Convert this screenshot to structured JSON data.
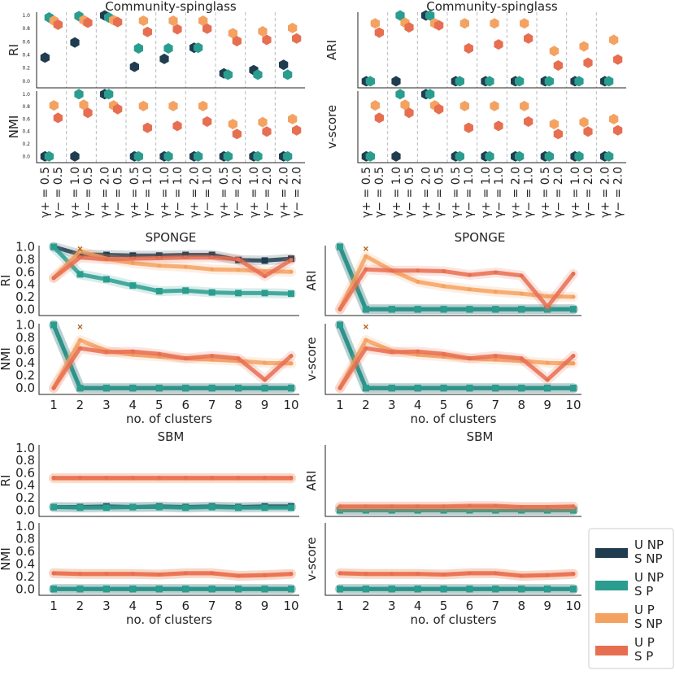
{
  "colors": {
    "UNP_SNP": "#1f3d4f",
    "UNP_SP": "#2a9d8f",
    "UP_SNP": "#f4a261",
    "UP_SP": "#e76f51",
    "axis": "#222222",
    "grid": "#bbbbbb",
    "marker_x": "#b5651d"
  },
  "legend": [
    {
      "key": "UNP_SNP",
      "line1": "U  NP",
      "line2": "S  NP"
    },
    {
      "key": "UNP_SP",
      "line1": "U  NP",
      "line2": "S   P"
    },
    {
      "key": "UP_SNP",
      "line1": "U   P",
      "line2": "S  NP"
    },
    {
      "key": "UP_SP",
      "line1": "U   P",
      "line2": "S   P"
    }
  ],
  "chart_data": [
    {
      "type": "scatter",
      "title": "Community-spinglass",
      "metrics": [
        "RI",
        "NMI",
        "ARI",
        "v-score"
      ],
      "categories": [
        "γ+ = 0.5\nγ− = 0.5",
        "γ+ = 1.0\nγ− = 0.5",
        "γ+ = 2.0\nγ− = 0.5",
        "γ+ = 0.5\nγ− = 1.0",
        "γ+ = 1.0\nγ− = 1.0",
        "γ+ = 2.0\nγ− = 1.0",
        "γ+ = 0.5\nγ− = 2.0",
        "γ+ = 1.0\nγ− = 2.0",
        "γ+ = 2.0\nγ− = 2.0"
      ],
      "cat_labels": [
        "γ+ = 0.5",
        "γ− = 0.5",
        "γ+ = 1.0",
        "γ− = 0.5",
        "γ+ = 2.0",
        "γ− = 0.5",
        "γ+ = 0.5",
        "γ− = 1.0",
        "γ+ = 1.0",
        "γ− = 1.0",
        "γ+ = 2.0",
        "γ− = 1.0",
        "γ+ = 0.5",
        "γ− = 2.0",
        "γ+ = 1.0",
        "γ− = 2.0",
        "γ+ = 2.0",
        "γ− = 2.0"
      ],
      "yticks": [
        "0.0",
        "0.2",
        "0.4",
        "0.6",
        "0.8",
        "1.0"
      ],
      "ylim": [
        -0.1,
        1.05
      ],
      "series": {
        "RI": {
          "UNP_SNP": [
            0.36,
            0.59,
            1.0,
            0.22,
            0.34,
            0.51,
            0.12,
            0.17,
            0.25
          ],
          "UNP_SP": [
            0.97,
            0.99,
            0.97,
            0.5,
            0.5,
            0.51,
            0.1,
            0.1,
            0.1
          ],
          "UP_SNP": [
            0.92,
            0.93,
            0.93,
            0.92,
            0.92,
            0.92,
            0.73,
            0.76,
            0.81
          ],
          "UP_SP": [
            0.86,
            0.89,
            0.9,
            0.75,
            0.79,
            0.8,
            0.61,
            0.63,
            0.65
          ]
        },
        "NMI": {
          "UNP_SNP": [
            0.0,
            0.0,
            1.0,
            0.0,
            0.0,
            0.0,
            0.0,
            0.0,
            0.0
          ],
          "UNP_SP": [
            0.0,
            1.0,
            1.0,
            0.0,
            0.0,
            0.0,
            0.0,
            0.0,
            0.0
          ],
          "UP_SNP": [
            0.82,
            0.83,
            0.82,
            0.81,
            0.81,
            0.81,
            0.52,
            0.55,
            0.6
          ],
          "UP_SP": [
            0.62,
            0.7,
            0.76,
            0.46,
            0.49,
            0.56,
            0.36,
            0.4,
            0.42
          ]
        },
        "ARI": {
          "UNP_SNP": [
            0.0,
            0.0,
            1.0,
            0.0,
            0.0,
            0.0,
            0.0,
            0.0,
            0.0
          ],
          "UNP_SP": [
            0.0,
            1.0,
            1.0,
            0.0,
            0.0,
            0.0,
            0.0,
            0.0,
            0.0
          ],
          "UP_SNP": [
            0.88,
            0.89,
            0.88,
            0.88,
            0.88,
            0.88,
            0.46,
            0.53,
            0.63
          ],
          "UP_SP": [
            0.74,
            0.82,
            0.85,
            0.5,
            0.56,
            0.65,
            0.24,
            0.28,
            0.33
          ]
        },
        "v-score": {
          "UNP_SNP": [
            0.0,
            0.0,
            1.0,
            0.0,
            0.0,
            0.0,
            0.0,
            0.0,
            0.0
          ],
          "UNP_SP": [
            0.0,
            1.0,
            1.0,
            0.0,
            0.0,
            0.0,
            0.0,
            0.0,
            0.0
          ],
          "UP_SNP": [
            0.82,
            0.83,
            0.82,
            0.81,
            0.81,
            0.81,
            0.52,
            0.55,
            0.6
          ],
          "UP_SP": [
            0.62,
            0.7,
            0.76,
            0.46,
            0.49,
            0.56,
            0.36,
            0.4,
            0.42
          ]
        }
      }
    },
    {
      "type": "line",
      "title": "SPONGE",
      "metrics": [
        "RI",
        "NMI",
        "ARI",
        "v-score"
      ],
      "xlabel": "no. of clusters",
      "x": [
        1,
        2,
        3,
        4,
        5,
        6,
        7,
        8,
        9,
        10
      ],
      "yticks": [
        "0.0",
        "0.2",
        "0.4",
        "0.6",
        "0.8",
        "1.0"
      ],
      "ylim": [
        -0.1,
        1.02
      ],
      "x_marker": {
        "x": 2,
        "y": 0.97
      },
      "series": {
        "RI": {
          "UNP_SNP": [
            1.0,
            0.88,
            0.87,
            0.86,
            0.86,
            0.87,
            0.87,
            0.79,
            0.78,
            0.81
          ],
          "UNP_SP": [
            1.0,
            0.56,
            0.48,
            0.38,
            0.29,
            0.3,
            0.27,
            0.26,
            0.26,
            0.25
          ],
          "UP_SNP": [
            0.5,
            0.93,
            0.81,
            0.74,
            0.7,
            0.68,
            0.64,
            0.63,
            0.61,
            0.6
          ],
          "UP_SP": [
            0.5,
            0.83,
            0.8,
            0.81,
            0.82,
            0.83,
            0.83,
            0.8,
            0.53,
            0.79
          ]
        },
        "NMI": {
          "UNP_SNP": [
            1.0,
            0.0,
            0.0,
            0.0,
            0.0,
            0.0,
            0.0,
            0.0,
            0.0,
            0.0
          ],
          "UNP_SP": [
            1.0,
            0.0,
            0.0,
            0.0,
            0.0,
            0.0,
            0.0,
            0.0,
            0.0,
            0.0
          ],
          "UP_SNP": [
            0.0,
            0.76,
            0.59,
            0.53,
            0.5,
            0.47,
            0.45,
            0.43,
            0.4,
            0.39
          ],
          "UP_SP": [
            0.0,
            0.63,
            0.57,
            0.58,
            0.54,
            0.47,
            0.51,
            0.47,
            0.13,
            0.51
          ]
        },
        "ARI": {
          "UNP_SNP": [
            1.0,
            0.0,
            0.0,
            0.0,
            0.0,
            0.0,
            0.0,
            0.0,
            0.0,
            0.0
          ],
          "UNP_SP": [
            1.0,
            0.0,
            0.0,
            0.0,
            0.0,
            0.0,
            0.0,
            0.0,
            0.0,
            0.0
          ],
          "UP_SNP": [
            0.0,
            0.85,
            0.62,
            0.44,
            0.37,
            0.32,
            0.28,
            0.25,
            0.21,
            0.2
          ],
          "UP_SP": [
            0.0,
            0.64,
            0.62,
            0.62,
            0.61,
            0.55,
            0.59,
            0.54,
            0.04,
            0.57
          ]
        },
        "v-score": {
          "UNP_SNP": [
            1.0,
            0.0,
            0.0,
            0.0,
            0.0,
            0.0,
            0.0,
            0.0,
            0.0,
            0.0
          ],
          "UNP_SP": [
            1.0,
            0.0,
            0.0,
            0.0,
            0.0,
            0.0,
            0.0,
            0.0,
            0.0,
            0.0
          ],
          "UP_SNP": [
            0.0,
            0.76,
            0.59,
            0.53,
            0.5,
            0.47,
            0.45,
            0.43,
            0.4,
            0.39
          ],
          "UP_SP": [
            0.0,
            0.63,
            0.57,
            0.58,
            0.54,
            0.47,
            0.51,
            0.47,
            0.13,
            0.51
          ]
        }
      }
    },
    {
      "type": "line",
      "title": "SBM",
      "metrics": [
        "RI",
        "NMI",
        "ARI",
        "v-score"
      ],
      "xlabel": "no. of clusters",
      "x": [
        1,
        2,
        3,
        4,
        5,
        6,
        7,
        8,
        9,
        10
      ],
      "yticks_left": [
        "0.0",
        "0.2",
        "0.4",
        "0.6",
        "0.8",
        "1.0"
      ],
      "ylim": [
        -0.1,
        1.05
      ],
      "series": {
        "RI": {
          "UNP_SNP": [
            0.05,
            0.05,
            0.06,
            0.05,
            0.06,
            0.05,
            0.06,
            0.05,
            0.06,
            0.06
          ],
          "UNP_SP": [
            0.05,
            0.04,
            0.04,
            0.05,
            0.05,
            0.04,
            0.05,
            0.04,
            0.04,
            0.04
          ],
          "UP_SNP": [
            0.51,
            0.51,
            0.51,
            0.51,
            0.51,
            0.51,
            0.51,
            0.51,
            0.51,
            0.51
          ],
          "UP_SP": [
            0.52,
            0.52,
            0.52,
            0.52,
            0.52,
            0.52,
            0.52,
            0.52,
            0.52,
            0.52
          ]
        },
        "NMI": {
          "UNP_SNP": [
            0.0,
            0.0,
            0.0,
            0.0,
            0.0,
            0.0,
            0.0,
            0.0,
            0.0,
            0.0
          ],
          "UNP_SP": [
            0.0,
            0.0,
            0.0,
            0.0,
            0.0,
            0.0,
            0.0,
            0.0,
            0.0,
            0.0
          ],
          "UP_SNP": [
            0.25,
            0.24,
            0.24,
            0.24,
            0.23,
            0.25,
            0.25,
            0.21,
            0.22,
            0.24
          ],
          "UP_SP": [
            0.25,
            0.24,
            0.24,
            0.24,
            0.23,
            0.25,
            0.25,
            0.21,
            0.22,
            0.24
          ]
        },
        "ARI": {
          "UNP_SNP": [
            0.0,
            0.0,
            0.0,
            0.0,
            0.0,
            0.0,
            0.0,
            0.0,
            0.0,
            0.0
          ],
          "UNP_SP": [
            0.0,
            0.0,
            0.0,
            0.0,
            0.0,
            0.0,
            0.0,
            0.0,
            0.0,
            0.0
          ],
          "UP_SNP": [
            0.05,
            0.05,
            0.05,
            0.05,
            0.05,
            0.05,
            0.05,
            0.05,
            0.05,
            0.05
          ],
          "UP_SP": [
            0.06,
            0.06,
            0.06,
            0.06,
            0.06,
            0.07,
            0.07,
            0.05,
            0.05,
            0.06
          ]
        },
        "v-score": {
          "UNP_SNP": [
            0.0,
            0.0,
            0.0,
            0.0,
            0.0,
            0.0,
            0.0,
            0.0,
            0.0,
            0.0
          ],
          "UNP_SP": [
            0.0,
            0.0,
            0.0,
            0.0,
            0.0,
            0.0,
            0.0,
            0.0,
            0.0,
            0.0
          ],
          "UP_SNP": [
            0.25,
            0.24,
            0.24,
            0.24,
            0.23,
            0.25,
            0.25,
            0.21,
            0.22,
            0.24
          ],
          "UP_SP": [
            0.25,
            0.24,
            0.24,
            0.24,
            0.23,
            0.25,
            0.25,
            0.21,
            0.22,
            0.24
          ]
        }
      }
    }
  ]
}
